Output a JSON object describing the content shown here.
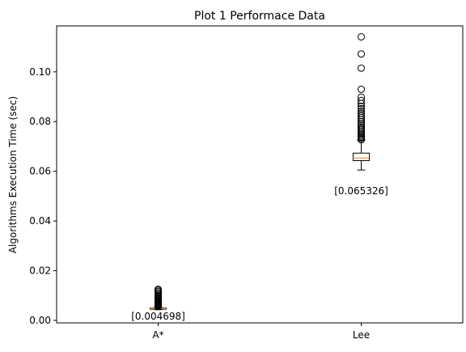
{
  "chart_data": {
    "type": "box",
    "title": "Plot 1 Performace Data",
    "xlabel": "",
    "ylabel": "Algorithms Execution Time (sec)",
    "ylim": [
      -0.001,
      0.1185
    ],
    "yticks": [
      0.0,
      0.02,
      0.04,
      0.06,
      0.08,
      0.1
    ],
    "ytick_labels": [
      "0.00",
      "0.02",
      "0.04",
      "0.06",
      "0.08",
      "0.10"
    ],
    "grid": false,
    "categories": [
      "A*",
      "Lee"
    ],
    "boxes": [
      {
        "name": "A*",
        "whisker_low": 0.0043,
        "q1": 0.0045,
        "median": 0.004698,
        "q3": 0.0049,
        "whisker_high": 0.0054,
        "fliers": [
          0.0056,
          0.0058,
          0.006,
          0.0062,
          0.0064,
          0.0066,
          0.0068,
          0.0071,
          0.0074,
          0.0077,
          0.008,
          0.0084,
          0.0088,
          0.0092,
          0.0096,
          0.0101,
          0.0106,
          0.0111,
          0.0116,
          0.0121,
          0.0125
        ],
        "annotation": "[0.004698]",
        "annotation_y": 0.0
      },
      {
        "name": "Lee",
        "whisker_low": 0.0605,
        "q1": 0.0643,
        "median": 0.065326,
        "q3": 0.0673,
        "whisker_high": 0.0725,
        "fliers": [
          0.0727,
          0.0732,
          0.0737,
          0.0742,
          0.0748,
          0.0754,
          0.076,
          0.0766,
          0.0772,
          0.0778,
          0.0785,
          0.0792,
          0.08,
          0.0808,
          0.0816,
          0.0824,
          0.0833,
          0.0842,
          0.0852,
          0.0862,
          0.0873,
          0.0885,
          0.0898,
          0.093,
          0.1015,
          0.1072,
          0.1141
        ],
        "annotation": "[0.065326]",
        "annotation_y": 0.0505
      }
    ],
    "colors": {
      "box": "#000000",
      "median": "#ff7f0e",
      "flier": "#000000",
      "axes": "#000000"
    }
  }
}
